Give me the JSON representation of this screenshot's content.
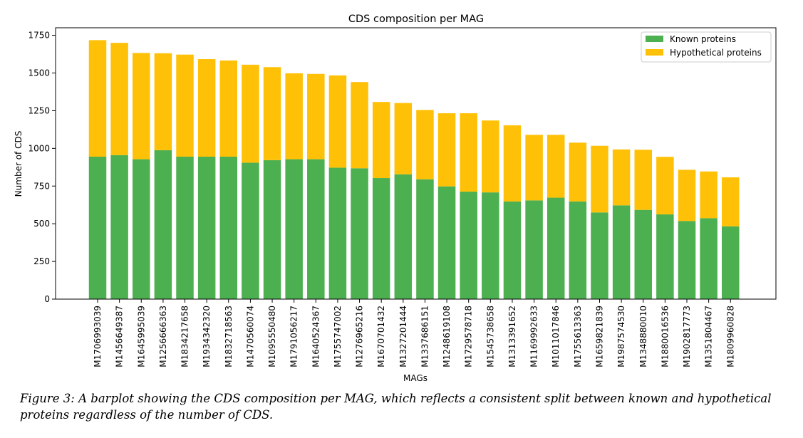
{
  "chart_data": {
    "type": "bar",
    "stacked": true,
    "title": "CDS composition per MAG",
    "xlabel": "MAGs",
    "ylabel": "Number of CDS",
    "ylim": [
      0,
      1800
    ],
    "yticks": [
      0,
      250,
      500,
      750,
      1000,
      1250,
      1500,
      1750
    ],
    "ytick_labels": [
      "0",
      "250",
      "500",
      "750",
      "1000",
      "1250",
      "1500",
      "1750"
    ],
    "legend_position": "top-right",
    "grid": false,
    "categories": [
      "M1706993039",
      "M1456649387",
      "M1645995039",
      "M1256666363",
      "M1834217658",
      "M1934342320",
      "M1832718563",
      "M1470560074",
      "M1095550480",
      "M1791056217",
      "M1640524367",
      "M1755747002",
      "M1276965216",
      "M1670701432",
      "M1327201444",
      "M1337686151",
      "M1248619108",
      "M1729578718",
      "M1545738658",
      "M1313391652",
      "M1169992633",
      "M1011017846",
      "M1755613363",
      "M1659821839",
      "M1987574530",
      "M1348880010",
      "M1880016536",
      "M1902817773",
      "M1351804467",
      "M1809960828"
    ],
    "series": [
      {
        "name": "Known proteins",
        "color": "#4caf50",
        "values": [
          945,
          955,
          928,
          988,
          945,
          945,
          945,
          905,
          922,
          928,
          928,
          872,
          868,
          803,
          828,
          795,
          748,
          713,
          708,
          648,
          655,
          673,
          648,
          575,
          622,
          592,
          562,
          518,
          537,
          483
        ]
      },
      {
        "name": "Hypothetical proteins",
        "color": "#ffc107",
        "values": [
          773,
          745,
          705,
          643,
          677,
          647,
          638,
          650,
          617,
          570,
          566,
          612,
          572,
          505,
          473,
          460,
          485,
          520,
          477,
          505,
          435,
          417,
          390,
          442,
          371,
          399,
          382,
          340,
          310,
          325
        ]
      }
    ]
  },
  "caption": "Figure 3: A barplot showing the CDS composition per MAG, which reflects a consistent split between known and hypothetical proteins regardless of the number of CDS."
}
